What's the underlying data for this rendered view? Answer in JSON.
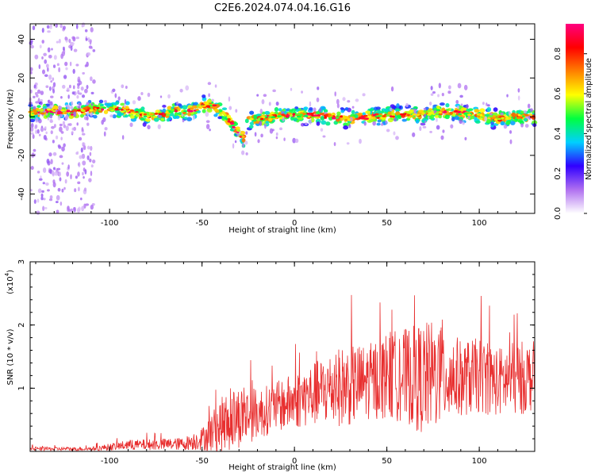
{
  "chart_data": [
    {
      "type": "heatmap",
      "title": "C2E6.2024.074.04.16.G16",
      "xlabel": "Height of straight line (km)",
      "ylabel": "Frequency (Hz)",
      "xlim": [
        -143,
        130
      ],
      "ylim": [
        -50,
        48
      ],
      "xticks": [
        -100,
        -50,
        0,
        50,
        100
      ],
      "yticks": [
        -40,
        -20,
        0,
        20,
        40
      ],
      "colorbar": {
        "label": "Normalized spectral amplitude",
        "range": [
          0,
          0.95
        ],
        "ticks": [
          "0.0",
          "0.2",
          "0.4",
          "0.6",
          "0.8"
        ],
        "colormap": [
          "#ffffff",
          "#b070f0",
          "#3000ff",
          "#00d0ff",
          "#00ff40",
          "#ffff00",
          "#ff8000",
          "#ff0000",
          "#ff0080"
        ]
      },
      "ridge": {
        "x": [
          -143,
          -130,
          -120,
          -110,
          -100,
          -90,
          -80,
          -70,
          -65,
          -60,
          -55,
          -50,
          -45,
          -40,
          -35,
          -30,
          -27,
          -25,
          -20,
          -10,
          0,
          10,
          20,
          30,
          40,
          50,
          60,
          70,
          80,
          90,
          100,
          110,
          120,
          130
        ],
        "freq": [
          2,
          3,
          2,
          4,
          4,
          3,
          0,
          1,
          4,
          2,
          3,
          6,
          6,
          3,
          -2,
          -8,
          -12,
          -2,
          -1,
          0,
          1,
          1,
          0,
          -1,
          0,
          1,
          1,
          1,
          3,
          2,
          1,
          -1,
          0,
          0
        ]
      }
    },
    {
      "type": "line",
      "title": "",
      "xlabel": "Height of straight line (km)",
      "ylabel": "SNR (10 * v/v)",
      "y_multiplier": "(x10",
      "y_exponent": "4",
      "y_multiplier_close": ")",
      "xlim": [
        -143,
        130
      ],
      "ylim": [
        0,
        3
      ],
      "xticks": [
        -100,
        -50,
        0,
        50,
        100
      ],
      "yticks": [
        1,
        2,
        3
      ],
      "color": "#e83030",
      "envelope": {
        "x": [
          -143,
          -110,
          -90,
          -60,
          -50,
          -40,
          -30,
          -20,
          -10,
          0,
          10,
          20,
          30,
          40,
          50,
          60,
          70,
          80,
          90,
          100,
          110,
          120,
          130
        ],
        "mean": [
          0.04,
          0.04,
          0.1,
          0.12,
          0.2,
          0.4,
          0.55,
          0.6,
          0.7,
          0.8,
          0.9,
          1.0,
          1.05,
          1.1,
          1.2,
          1.2,
          1.15,
          1.25,
          1.15,
          1.2,
          1.1,
          1.15,
          1.2
        ],
        "spread": [
          0.03,
          0.03,
          0.08,
          0.1,
          0.18,
          0.45,
          0.5,
          0.4,
          0.4,
          0.45,
          0.5,
          0.6,
          0.65,
          0.6,
          0.7,
          0.75,
          0.9,
          0.85,
          0.6,
          0.6,
          0.55,
          0.6,
          0.55
        ]
      }
    }
  ]
}
